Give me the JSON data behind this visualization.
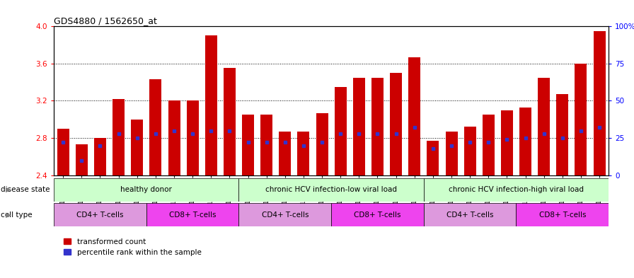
{
  "title": "GDS4880 / 1562650_at",
  "samples": [
    "GSM1210739",
    "GSM1210740",
    "GSM1210741",
    "GSM1210742",
    "GSM1210743",
    "GSM1210754",
    "GSM1210755",
    "GSM1210756",
    "GSM1210757",
    "GSM1210758",
    "GSM1210745",
    "GSM1210750",
    "GSM1210751",
    "GSM1210752",
    "GSM1210753",
    "GSM1210760",
    "GSM1210765",
    "GSM1210766",
    "GSM1210767",
    "GSM1210768",
    "GSM1210744",
    "GSM1210746",
    "GSM1210747",
    "GSM1210748",
    "GSM1210749",
    "GSM1210759",
    "GSM1210761",
    "GSM1210762",
    "GSM1210763",
    "GSM1210764"
  ],
  "bar_heights": [
    2.9,
    2.73,
    2.8,
    3.22,
    3.0,
    3.43,
    3.2,
    3.2,
    3.9,
    3.55,
    3.05,
    3.05,
    2.87,
    2.87,
    3.07,
    3.35,
    3.45,
    3.45,
    3.5,
    3.67,
    2.77,
    2.87,
    2.92,
    3.05,
    3.1,
    3.13,
    3.45,
    3.27,
    3.6,
    3.95
  ],
  "percentile_ranks": [
    22,
    10,
    20,
    28,
    25,
    28,
    30,
    28,
    30,
    30,
    22,
    22,
    22,
    20,
    22,
    28,
    28,
    28,
    28,
    32,
    18,
    20,
    22,
    22,
    24,
    25,
    28,
    25,
    30,
    32
  ],
  "ymin": 2.4,
  "ymax": 4.0,
  "yticks": [
    2.4,
    2.8,
    3.2,
    3.6,
    4.0
  ],
  "bar_color": "#cc0000",
  "blue_color": "#3333cc",
  "ds_groups": [
    {
      "label": "healthy donor",
      "start": 0,
      "end": 9,
      "color": "#ccffcc"
    },
    {
      "label": "chronic HCV infection-low viral load",
      "start": 10,
      "end": 19,
      "color": "#ccffcc"
    },
    {
      "label": "chronic HCV infection-high viral load",
      "start": 20,
      "end": 29,
      "color": "#ccffcc"
    }
  ],
  "ct_groups": [
    {
      "label": "CD4+ T-cells",
      "start": 0,
      "end": 4,
      "color": "#dd99dd"
    },
    {
      "label": "CD8+ T-cells",
      "start": 5,
      "end": 9,
      "color": "#ee44ee"
    },
    {
      "label": "CD4+ T-cells",
      "start": 10,
      "end": 14,
      "color": "#dd99dd"
    },
    {
      "label": "CD8+ T-cells",
      "start": 15,
      "end": 19,
      "color": "#ee44ee"
    },
    {
      "label": "CD4+ T-cells",
      "start": 20,
      "end": 24,
      "color": "#dd99dd"
    },
    {
      "label": "CD8+ T-cells",
      "start": 25,
      "end": 29,
      "color": "#ee44ee"
    }
  ],
  "legend_labels": [
    "transformed count",
    "percentile rank within the sample"
  ],
  "legend_colors": [
    "#cc0000",
    "#3333cc"
  ],
  "right_axis_ticks": [
    0,
    25,
    50,
    75,
    100
  ],
  "right_axis_labels": [
    "0",
    "25",
    "50",
    "75",
    "100%"
  ]
}
